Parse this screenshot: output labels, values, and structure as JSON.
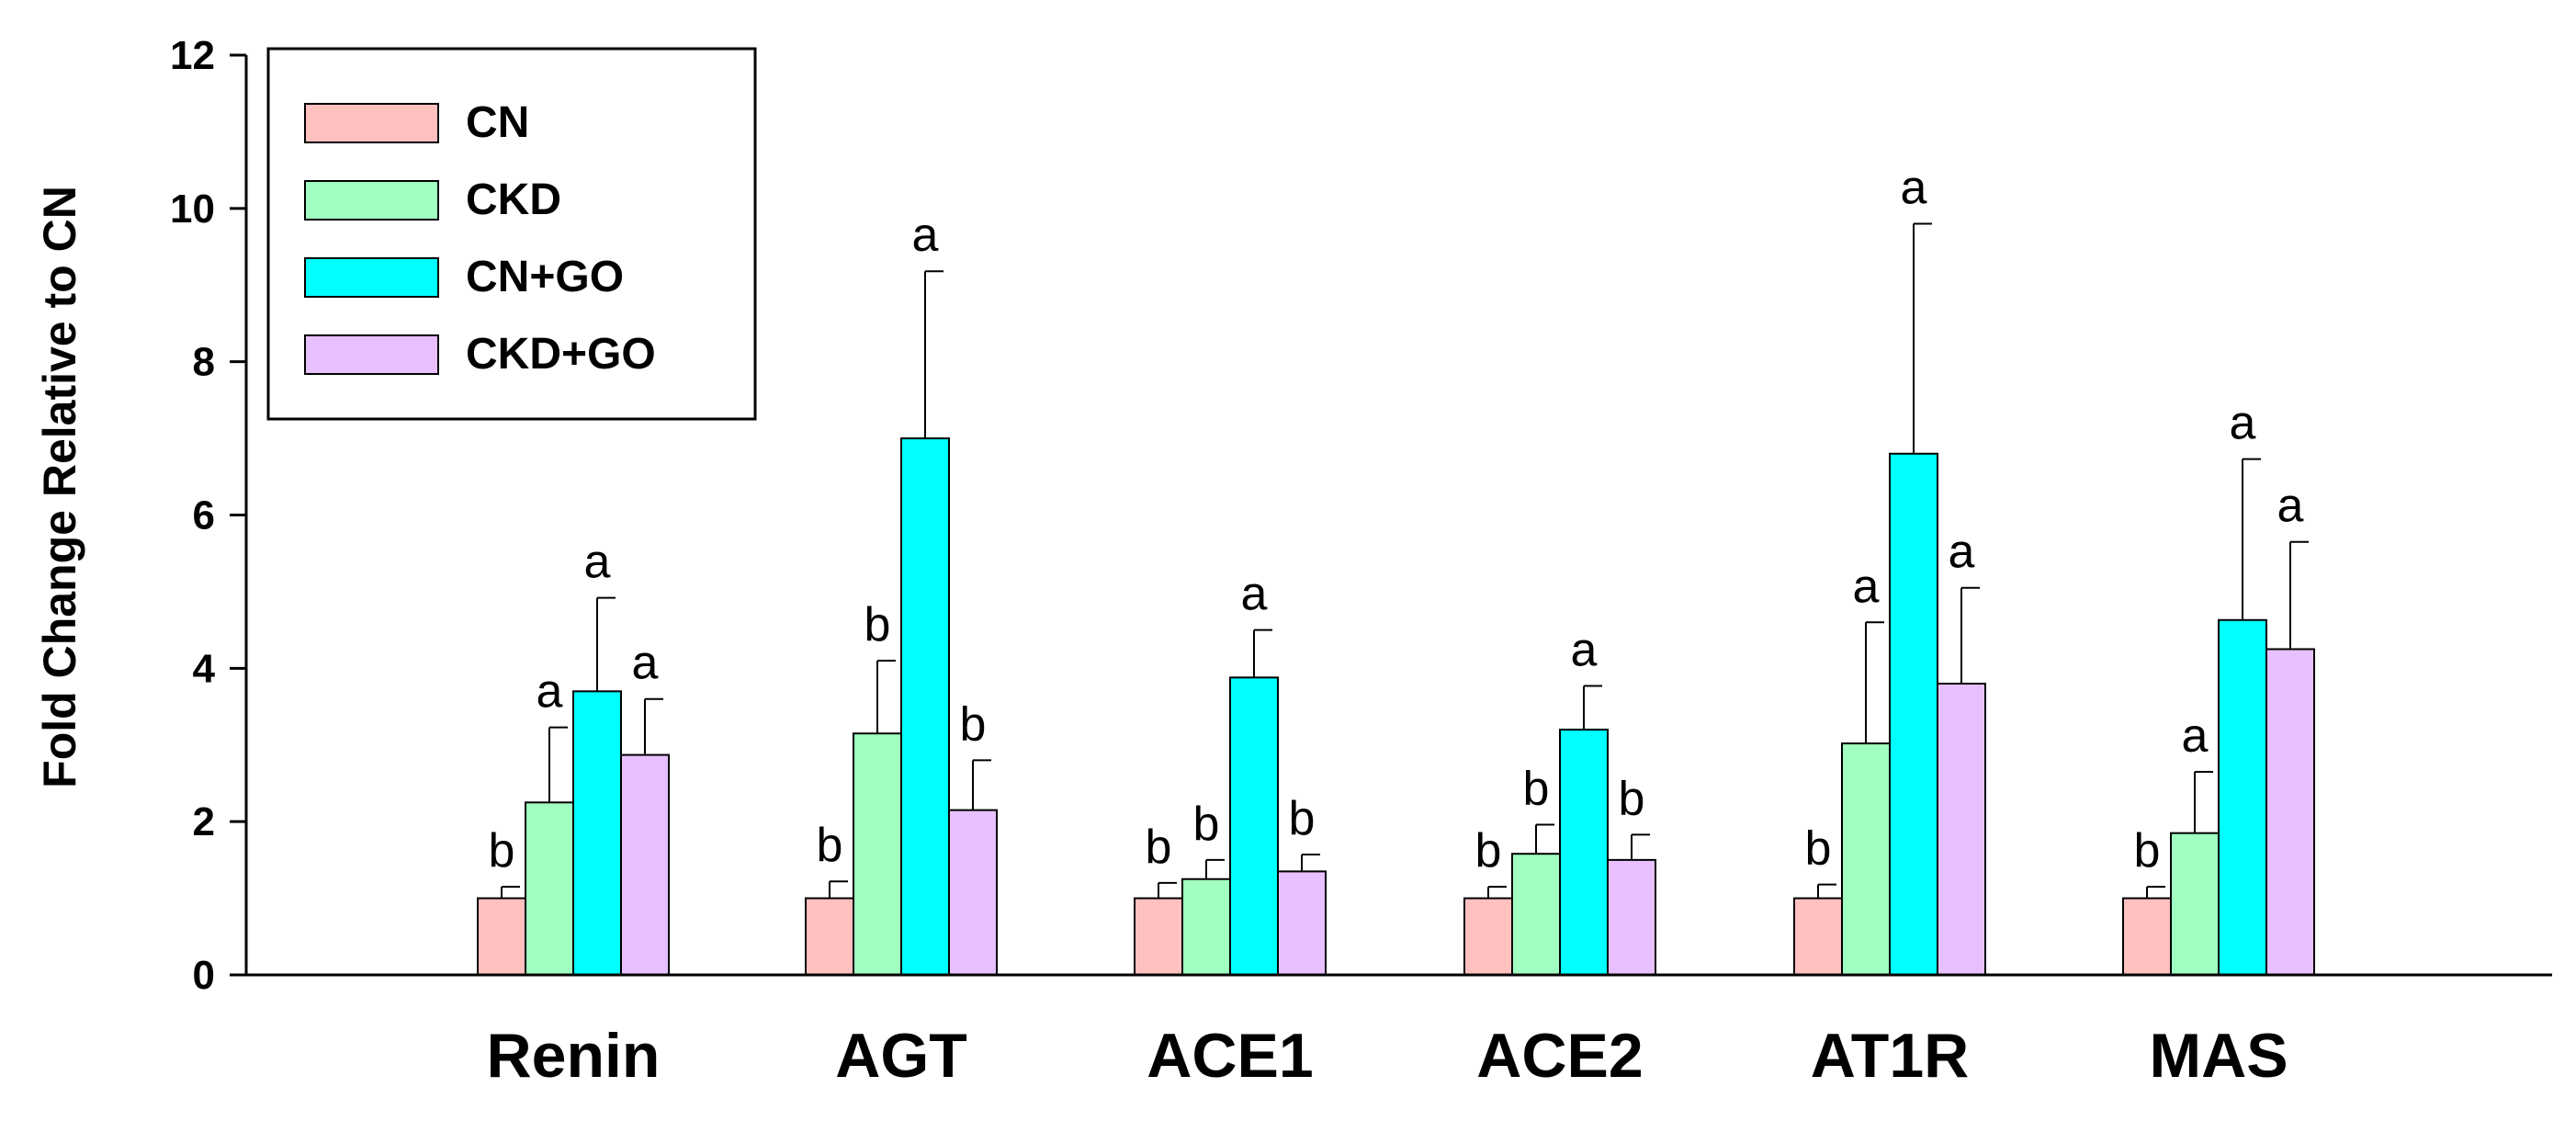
{
  "chart_data": {
    "type": "bar",
    "title": "",
    "xlabel": "",
    "ylabel": "Fold Change Relative to CN",
    "ylim": [
      0,
      12
    ],
    "yticks": [
      0,
      2,
      4,
      6,
      8,
      10,
      12
    ],
    "grid": false,
    "legend_position": "top-left",
    "categories": [
      "Renin",
      "AGT",
      "ACE1",
      "ACE2",
      "AT1R",
      "MAS"
    ],
    "series": [
      {
        "name": "CN",
        "color": "#FFC0C0",
        "values": [
          1.0,
          1.0,
          1.0,
          1.0,
          1.0,
          1.0
        ],
        "errors": [
          0.15,
          0.22,
          0.2,
          0.15,
          0.18,
          0.15
        ],
        "labels": [
          "b",
          "b",
          "b",
          "b",
          "b",
          "b"
        ]
      },
      {
        "name": "CKD",
        "color": "#A0FFC0",
        "values": [
          2.25,
          3.15,
          1.25,
          1.58,
          3.02,
          1.85
        ],
        "errors": [
          0.98,
          0.95,
          0.25,
          0.38,
          1.58,
          0.8
        ],
        "labels": [
          "a",
          "b",
          "b",
          "b",
          "a",
          "a"
        ]
      },
      {
        "name": "CN+GO",
        "color": "#00FFFF",
        "values": [
          3.7,
          7.0,
          3.88,
          3.2,
          6.8,
          4.63
        ],
        "errors": [
          1.22,
          2.18,
          0.62,
          0.57,
          3.0,
          2.1
        ],
        "labels": [
          "a",
          "a",
          "a",
          "a",
          "a",
          "a"
        ]
      },
      {
        "name": "CKD+GO",
        "color": "#E8C0FF",
        "values": [
          2.87,
          2.15,
          1.35,
          1.5,
          3.8,
          4.25
        ],
        "errors": [
          0.73,
          0.65,
          0.22,
          0.33,
          1.25,
          1.4
        ],
        "labels": [
          "a",
          "b",
          "b",
          "b",
          "a",
          "a"
        ]
      }
    ]
  }
}
